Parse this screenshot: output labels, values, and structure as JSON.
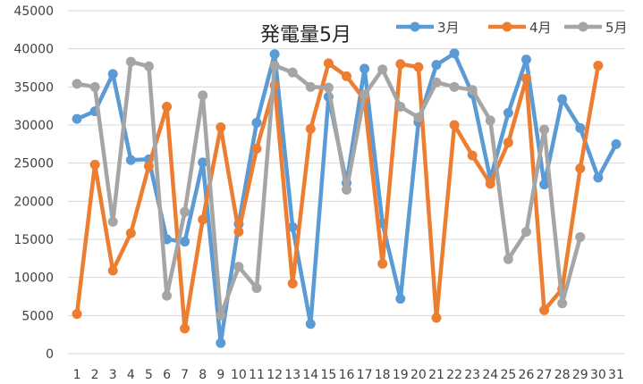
{
  "chart_data": {
    "type": "line",
    "title": "発電量5月",
    "xlabel": "",
    "ylabel": "",
    "x": [
      1,
      2,
      3,
      4,
      5,
      6,
      7,
      8,
      9,
      10,
      11,
      12,
      13,
      14,
      15,
      16,
      17,
      18,
      19,
      20,
      21,
      22,
      23,
      24,
      25,
      26,
      27,
      28,
      29,
      30,
      31
    ],
    "ylim": [
      0,
      45000
    ],
    "yticks": [
      0,
      5000,
      10000,
      15000,
      20000,
      25000,
      30000,
      35000,
      40000,
      45000
    ],
    "grid": true,
    "legend_position": "top-right",
    "series": [
      {
        "name": "3月",
        "color": "#5B9BD5",
        "values": [
          30800,
          31800,
          36700,
          25400,
          25500,
          15000,
          14700,
          25100,
          1400,
          17000,
          30300,
          39300,
          16600,
          3900,
          33700,
          22400,
          37400,
          17100,
          7200,
          30400,
          37900,
          39400,
          34100,
          22900,
          31600,
          38600,
          22200,
          33400,
          29600,
          23100,
          27500
        ]
      },
      {
        "name": "4月",
        "color": "#ED7D31",
        "values": [
          5200,
          24800,
          10900,
          15800,
          24600,
          32400,
          3300,
          17600,
          29700,
          16000,
          26900,
          35200,
          9200,
          29500,
          38100,
          36400,
          33300,
          11800,
          38000,
          37600,
          4700,
          30000,
          26000,
          22300,
          27700,
          36100,
          5700,
          8500,
          24300,
          37800,
          null
        ]
      },
      {
        "name": "5月",
        "color": "#A5A5A5",
        "values": [
          35400,
          35000,
          17300,
          38300,
          37700,
          7600,
          18600,
          33900,
          5000,
          11400,
          8600,
          37800,
          36900,
          35000,
          34900,
          21500,
          34000,
          37300,
          32400,
          31000,
          35600,
          35000,
          34600,
          30600,
          12400,
          16000,
          29400,
          6600,
          15300,
          null,
          null
        ]
      }
    ]
  }
}
